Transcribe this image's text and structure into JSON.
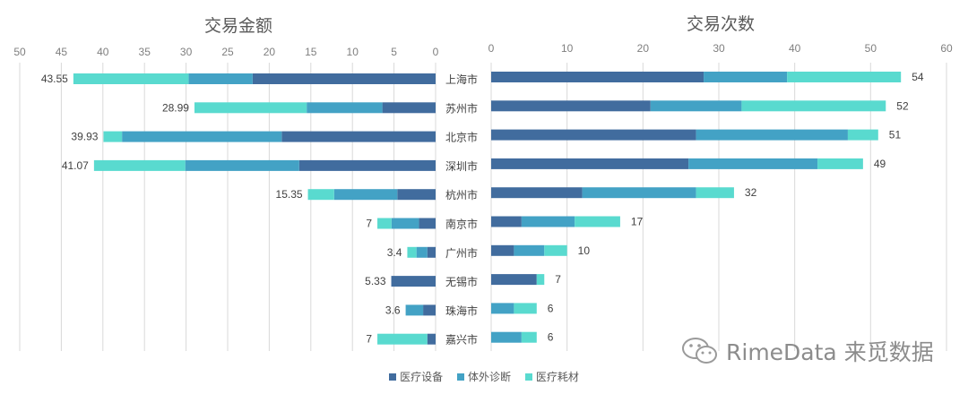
{
  "chart_data": [
    {
      "type": "bar",
      "orientation": "horizontal",
      "stacked": true,
      "title": "交易金额",
      "x_reversed": true,
      "xlim": [
        0,
        50
      ],
      "xticks": [
        "50",
        "45",
        "40",
        "35",
        "30",
        "25",
        "20",
        "15",
        "10",
        "5",
        "0"
      ],
      "categories": [
        "上海市",
        "苏州市",
        "北京市",
        "深圳市",
        "杭州市",
        "南京市",
        "广州市",
        "无锡市",
        "珠海市",
        "嘉兴市"
      ],
      "series": [
        {
          "name": "医疗设备",
          "color": "#416C9E",
          "values": [
            22.0,
            6.4,
            18.5,
            16.4,
            4.6,
            2.0,
            1.0,
            5.33,
            1.5,
            1.0
          ]
        },
        {
          "name": "体外诊断",
          "color": "#43A2C5",
          "values": [
            7.7,
            9.1,
            19.2,
            13.7,
            7.6,
            3.3,
            1.3,
            0,
            2.1,
            0
          ]
        },
        {
          "name": "医疗耗材",
          "color": "#59DACF",
          "values": [
            13.85,
            13.49,
            2.23,
            10.97,
            3.15,
            1.7,
            1.1,
            0,
            0,
            6.0
          ]
        }
      ],
      "totals": [
        "43.55",
        "28.99",
        "39.93",
        "41.07",
        "15.35",
        "7",
        "3.4",
        "5.33",
        "3.6",
        "7"
      ]
    },
    {
      "type": "bar",
      "orientation": "horizontal",
      "stacked": true,
      "title": "交易次数",
      "xlim": [
        0,
        60
      ],
      "xticks": [
        "0",
        "10",
        "20",
        "30",
        "40",
        "50",
        "60"
      ],
      "categories": [
        "上海市",
        "苏州市",
        "北京市",
        "深圳市",
        "杭州市",
        "南京市",
        "广州市",
        "无锡市",
        "珠海市",
        "嘉兴市"
      ],
      "series": [
        {
          "name": "医疗设备",
          "color": "#416C9E",
          "values": [
            28,
            21,
            27,
            26,
            12,
            4,
            3,
            6,
            0,
            0
          ]
        },
        {
          "name": "体外诊断",
          "color": "#43A2C5",
          "values": [
            11,
            12,
            20,
            17,
            15,
            7,
            4,
            0,
            3,
            4
          ]
        },
        {
          "name": "医疗耗材",
          "color": "#59DACF",
          "values": [
            15,
            19,
            4,
            6,
            5,
            6,
            3,
            1,
            3,
            2
          ]
        }
      ],
      "totals": [
        "54",
        "52",
        "51",
        "49",
        "32",
        "17",
        "10",
        "7",
        "6",
        "6"
      ]
    }
  ],
  "legend": [
    {
      "name": "医疗设备",
      "color": "#416C9E"
    },
    {
      "name": "体外诊断",
      "color": "#43A2C5"
    },
    {
      "name": "医疗耗材",
      "color": "#59DACF"
    }
  ],
  "watermark": {
    "text": "RimeData 来觅数据",
    "icon": "wechat-icon"
  }
}
